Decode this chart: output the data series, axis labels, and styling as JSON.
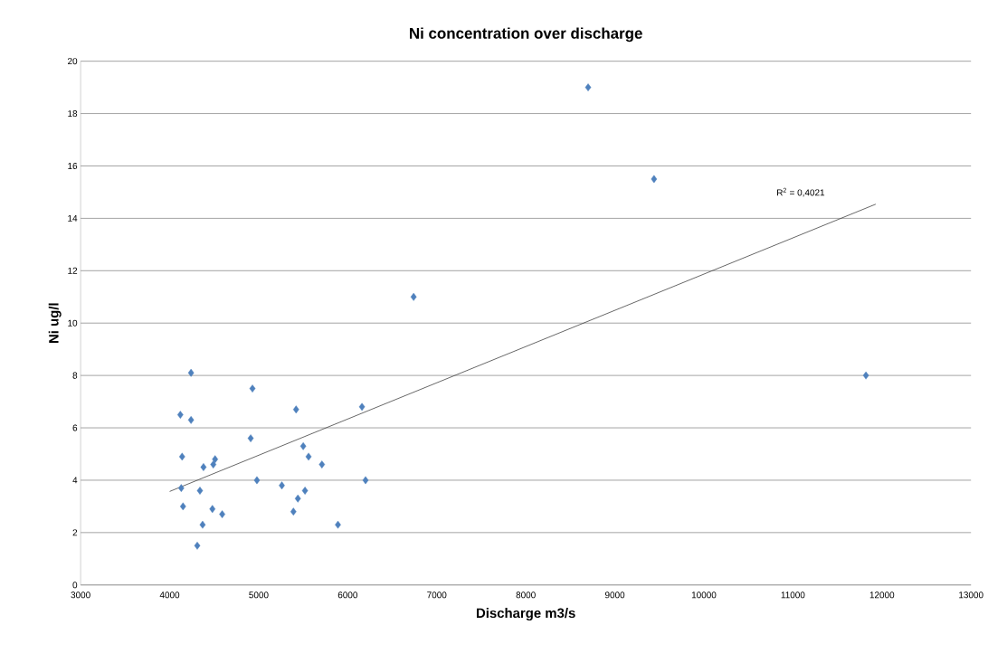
{
  "chart_data": {
    "type": "scatter",
    "title": "Ni concentration over discharge",
    "xlabel": "Discharge m3/s",
    "ylabel": "Ni ug/l",
    "xlim": [
      3000,
      13000
    ],
    "xticks": [
      3000,
      4000,
      5000,
      6000,
      7000,
      8000,
      9000,
      10000,
      11000,
      12000,
      13000
    ],
    "ylim": [
      0,
      20
    ],
    "yticks": [
      0,
      2,
      4,
      6,
      8,
      10,
      12,
      14,
      16,
      18,
      20
    ],
    "grid": "y",
    "annotations": [
      "R$^{2}$ = 0,4021"
    ],
    "series": [
      {
        "color": "#4f81bd",
        "marker": "diamond",
        "x": [
          4240,
          4120,
          4240,
          4140,
          4380,
          4510,
          4490,
          4130,
          4340,
          4150,
          4480,
          4590,
          4370,
          4310,
          4930,
          4910,
          4980,
          5420,
          5500,
          5560,
          5710,
          5260,
          5520,
          5440,
          5390,
          5890,
          6160,
          6200,
          6740,
          8700,
          9440,
          11820
        ],
        "values": [
          8.1,
          6.5,
          6.3,
          4.9,
          4.5,
          4.8,
          4.6,
          3.7,
          3.6,
          3.0,
          2.9,
          2.7,
          2.3,
          1.5,
          7.5,
          5.6,
          4.0,
          6.7,
          5.3,
          4.9,
          4.6,
          3.8,
          3.6,
          3.3,
          2.8,
          2.3,
          6.8,
          4.0,
          11.0,
          19.0,
          15.5,
          8.0
        ]
      },
      {
        "type": "line",
        "color": "#404040",
        "marker": "none",
        "x": [
          4000,
          11930
        ],
        "values": [
          3.57,
          14.54
        ]
      }
    ]
  }
}
